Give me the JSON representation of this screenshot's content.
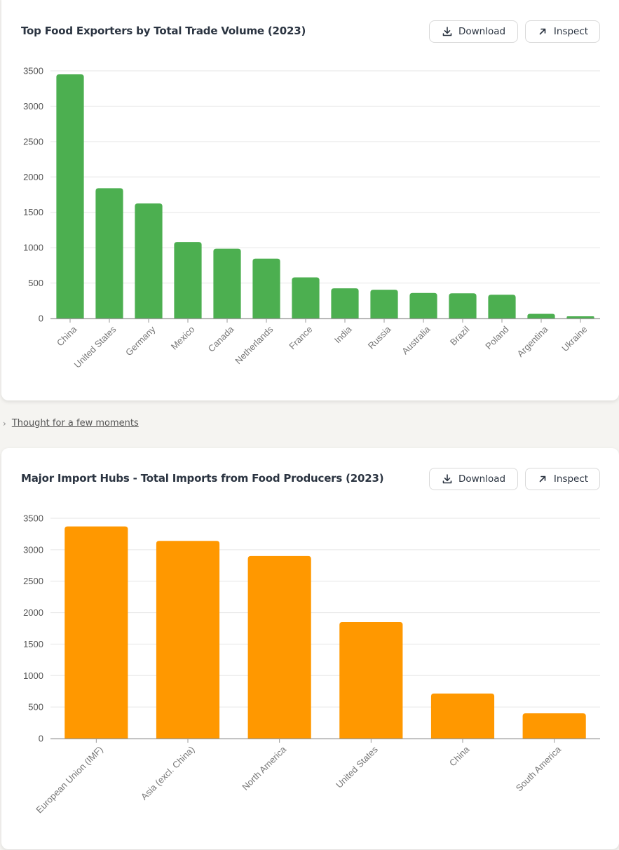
{
  "thought": {
    "label": "Thought for a few moments"
  },
  "buttons": {
    "download": "Download",
    "inspect": "Inspect"
  },
  "charts": [
    {
      "id": "exporters",
      "title": "Top Food Exporters by Total Trade Volume (2023)",
      "chart_data": {
        "type": "bar",
        "title": "Top Food Exporters by Total Trade Volume (2023)",
        "categories": [
          "China",
          "United States",
          "Germany",
          "Mexico",
          "Canada",
          "Netherlands",
          "France",
          "India",
          "Russia",
          "Australia",
          "Brazil",
          "Poland",
          "Argentina",
          "Ukraine"
        ],
        "values": [
          3450,
          1840,
          1625,
          1080,
          985,
          845,
          580,
          425,
          405,
          360,
          355,
          335,
          65,
          30
        ],
        "xlabel": "",
        "ylabel": "",
        "ylim": [
          0,
          3500
        ],
        "yticks": [
          0,
          500,
          1000,
          1500,
          2000,
          2500,
          3000,
          3500
        ],
        "grid": true,
        "color": "#4caf50"
      }
    },
    {
      "id": "importers",
      "title": "Major Import Hubs - Total Imports from Food Producers (2023)",
      "chart_data": {
        "type": "bar",
        "title": "Major Import Hubs - Total Imports from Food Producers (2023)",
        "categories": [
          "European Union (IMF)",
          "Asia (excl. China)",
          "North America",
          "United States",
          "China",
          "South America"
        ],
        "values": [
          3370,
          3140,
          2900,
          1850,
          715,
          400
        ],
        "xlabel": "",
        "ylabel": "",
        "ylim": [
          0,
          3500
        ],
        "yticks": [
          0,
          500,
          1000,
          1500,
          2000,
          2500,
          3000,
          3500
        ],
        "grid": true,
        "color": "#ff9800"
      }
    }
  ]
}
